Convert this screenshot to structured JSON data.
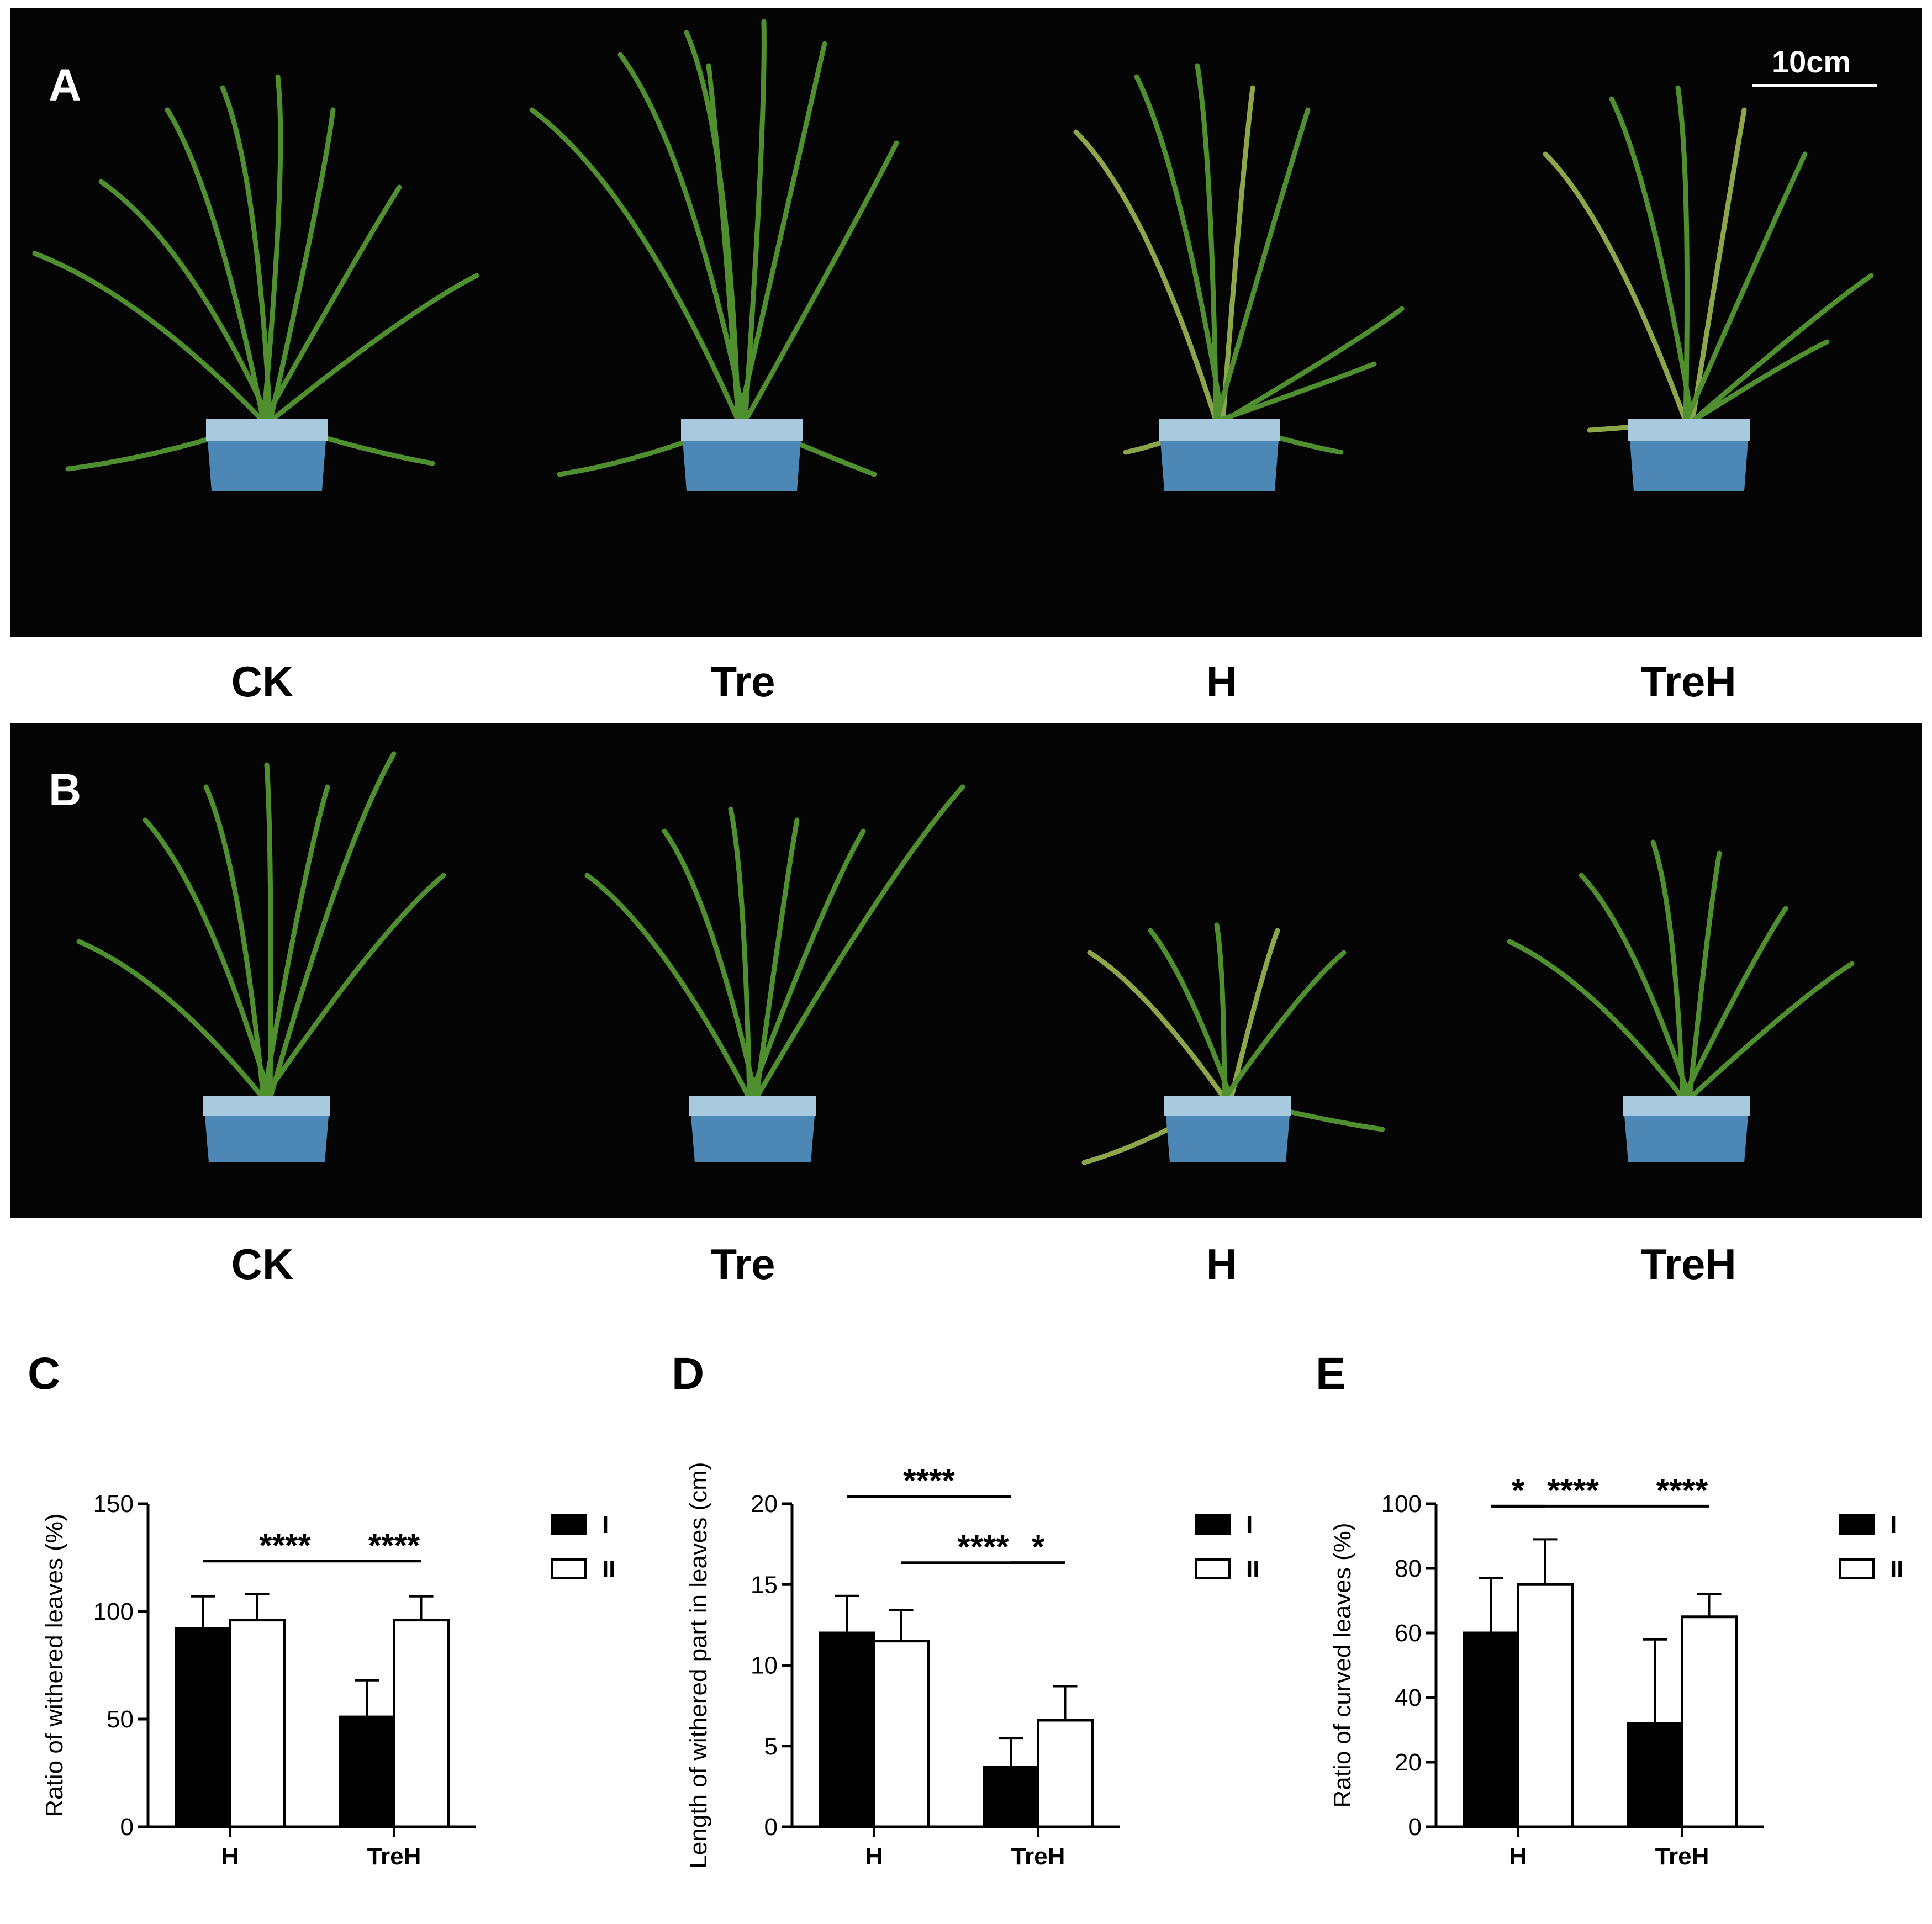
{
  "panel_a": {
    "letter": "A",
    "scale_bar_label": "10cm",
    "captions": [
      "CK",
      "Tre",
      "H",
      "TreH"
    ]
  },
  "panel_b": {
    "letter": "B",
    "captions": [
      "CK",
      "Tre",
      "H",
      "TreH"
    ]
  },
  "colors": {
    "photo_background": "#050505",
    "leaf_green": "#4f8f2f",
    "pot_blue": "#4d87b5",
    "bar_series_I": "#000000",
    "bar_series_II": "#ffffff"
  },
  "chart_data": [
    {
      "panel": "C",
      "type": "bar",
      "categories": [
        "H",
        "TreH"
      ],
      "ylabel": "Ratio of withered leaves (%)",
      "ylim": [
        0,
        150
      ],
      "yticks": [
        0,
        50,
        100,
        150
      ],
      "series": [
        {
          "name": "I",
          "values": [
            92,
            51
          ],
          "errors": [
            15,
            17
          ]
        },
        {
          "name": "II",
          "values": [
            96,
            96
          ],
          "errors": [
            12,
            11
          ]
        }
      ],
      "significance": [
        {
          "label": "****",
          "from": "H",
          "to": "TreH",
          "series": "I"
        },
        {
          "label": "****",
          "within": "TreH"
        }
      ],
      "legend": "right"
    },
    {
      "panel": "D",
      "type": "bar",
      "categories": [
        "H",
        "TreH"
      ],
      "ylabel": "Length of withered part in leaves  (cm)",
      "ylim": [
        0,
        20
      ],
      "yticks": [
        0,
        5,
        10,
        15,
        20
      ],
      "series": [
        {
          "name": "I",
          "values": [
            12.0,
            3.7
          ],
          "errors": [
            2.3,
            1.8
          ]
        },
        {
          "name": "II",
          "values": [
            11.5,
            6.6
          ],
          "errors": [
            1.9,
            2.1
          ]
        }
      ],
      "significance": [
        {
          "label": "****",
          "from": "H",
          "to": "TreH",
          "series": "II"
        },
        {
          "label": "****",
          "from": "H",
          "to": "TreH",
          "series": "I"
        },
        {
          "label": "*",
          "within": "TreH"
        }
      ],
      "legend": "right"
    },
    {
      "panel": "E",
      "type": "bar",
      "categories": [
        "H",
        "TreH"
      ],
      "ylabel": "Ratio of curved leaves  (%)",
      "ylim": [
        0,
        100
      ],
      "yticks": [
        0,
        20,
        40,
        60,
        80,
        100
      ],
      "series": [
        {
          "name": "I",
          "values": [
            60,
            32
          ],
          "errors": [
            17,
            26
          ]
        },
        {
          "name": "II",
          "values": [
            75,
            65
          ],
          "errors": [
            14,
            7
          ]
        }
      ],
      "significance": [
        {
          "label": "****",
          "from": "H",
          "to": "TreH",
          "series": "I"
        },
        {
          "label": "*",
          "within": "H"
        },
        {
          "label": "****",
          "within": "TreH"
        }
      ],
      "legend": "right"
    }
  ]
}
